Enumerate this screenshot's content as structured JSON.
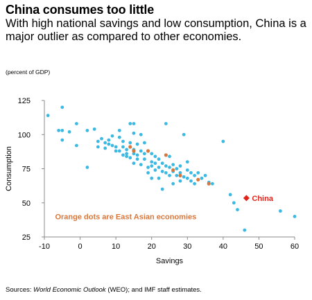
{
  "title": "China consumes too little",
  "subtitle": "With high national savings and low consumption, China is a major outlier as compared to other economies.",
  "unit_note": "(percent of GDP)",
  "source": {
    "prefix": "Sources: ",
    "italic": "World Economic Outlook",
    "suffix": " (WEO); and IMF staff estimates."
  },
  "colors": {
    "dots": "#3bb9e3",
    "east_asia": "#d9773a",
    "china": "#e2231a",
    "axis": "#888888",
    "text": "#000000"
  },
  "chart_data": {
    "type": "scatter",
    "xlabel": "Savings",
    "ylabel": "Consumption",
    "xlim": [
      -10,
      60
    ],
    "ylim": [
      25,
      125
    ],
    "x_ticks": [
      "-10",
      "0",
      "10",
      "20",
      "30",
      "40",
      "50",
      "60"
    ],
    "y_ticks": [
      "25",
      "50",
      "75",
      "100",
      "125"
    ],
    "grid": false,
    "annotation": "Orange dots are East Asian economies",
    "china_label": "China",
    "series": [
      {
        "points": [
          [
            -9,
            114
          ],
          [
            -5,
            120
          ],
          [
            -6,
            103
          ],
          [
            -5,
            103
          ],
          [
            -5,
            96
          ],
          [
            -3,
            102
          ],
          [
            -1,
            108
          ],
          [
            -1,
            92
          ],
          [
            2,
            103
          ],
          [
            2,
            76
          ],
          [
            4,
            104
          ],
          [
            5,
            95
          ],
          [
            5,
            91
          ],
          [
            6,
            97
          ],
          [
            7,
            94
          ],
          [
            7,
            90
          ],
          [
            8,
            96
          ],
          [
            8,
            93
          ],
          [
            9,
            92
          ],
          [
            9,
            99
          ],
          [
            10,
            91
          ],
          [
            10,
            88
          ],
          [
            11,
            98
          ],
          [
            11,
            103
          ],
          [
            11,
            88
          ],
          [
            12,
            95
          ],
          [
            12,
            91
          ],
          [
            12,
            85
          ],
          [
            13,
            89
          ],
          [
            13,
            86
          ],
          [
            13,
            84
          ],
          [
            14,
            83
          ],
          [
            14,
            94
          ],
          [
            14,
            108
          ],
          [
            15,
            108
          ],
          [
            15,
            101
          ],
          [
            15,
            89
          ],
          [
            15,
            86
          ],
          [
            15,
            79
          ],
          [
            16,
            93
          ],
          [
            16,
            85
          ],
          [
            16,
            82
          ],
          [
            17,
            100
          ],
          [
            17,
            88
          ],
          [
            17,
            78
          ],
          [
            18,
            94
          ],
          [
            18,
            86
          ],
          [
            18,
            82
          ],
          [
            19,
            88
          ],
          [
            19,
            76
          ],
          [
            19,
            72
          ],
          [
            20,
            86
          ],
          [
            20,
            80
          ],
          [
            20,
            77
          ],
          [
            20,
            68
          ],
          [
            21,
            84
          ],
          [
            21,
            79
          ],
          [
            21,
            74
          ],
          [
            22,
            82
          ],
          [
            22,
            76
          ],
          [
            22,
            68
          ],
          [
            23,
            79
          ],
          [
            23,
            73
          ],
          [
            23,
            60
          ],
          [
            24,
            77
          ],
          [
            24,
            72
          ],
          [
            24,
            108
          ],
          [
            25,
            84
          ],
          [
            25,
            76
          ],
          [
            25,
            70
          ],
          [
            26,
            78
          ],
          [
            26,
            73
          ],
          [
            26,
            64
          ],
          [
            27,
            75
          ],
          [
            27,
            70
          ],
          [
            28,
            77
          ],
          [
            28,
            72
          ],
          [
            28,
            66
          ],
          [
            29,
            69
          ],
          [
            29,
            100
          ],
          [
            30,
            80
          ],
          [
            30,
            74
          ],
          [
            30,
            68
          ],
          [
            31,
            72
          ],
          [
            31,
            66
          ],
          [
            32,
            70
          ],
          [
            32,
            64
          ],
          [
            33,
            72
          ],
          [
            34,
            68
          ],
          [
            35,
            70
          ],
          [
            36,
            65
          ],
          [
            37,
            64
          ],
          [
            40,
            95
          ],
          [
            42,
            56
          ],
          [
            43,
            50
          ],
          [
            44,
            45
          ],
          [
            46,
            30
          ],
          [
            56,
            44
          ],
          [
            60,
            40
          ]
        ]
      },
      {
        "points": [
          [
            14,
            91
          ],
          [
            15,
            88
          ],
          [
            19,
            88
          ],
          [
            24,
            85
          ],
          [
            26,
            74
          ],
          [
            28,
            70
          ],
          [
            33,
            67
          ],
          [
            36,
            64
          ]
        ]
      },
      {
        "points": [
          [
            46.5,
            53.5
          ]
        ]
      }
    ]
  }
}
